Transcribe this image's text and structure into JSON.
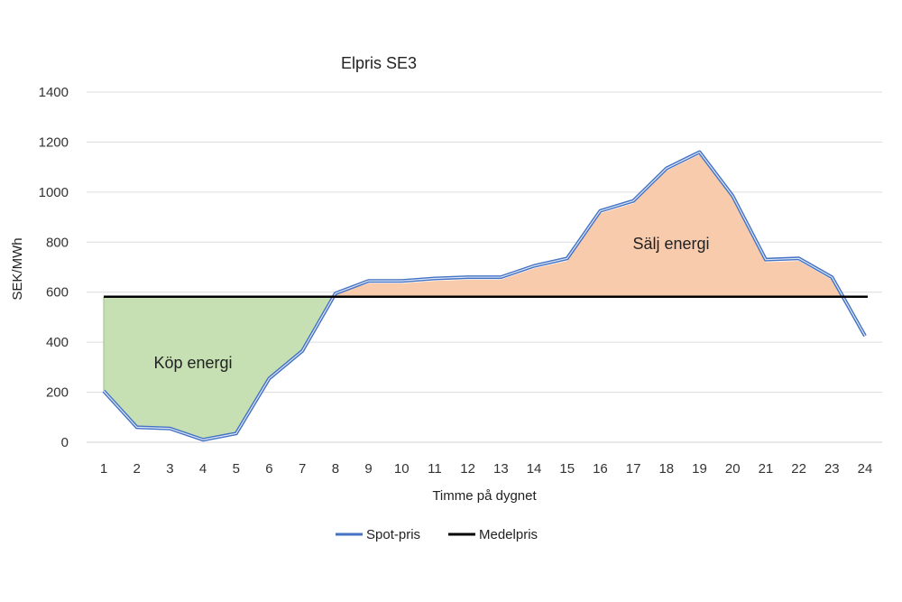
{
  "chart_data": {
    "type": "line",
    "title": "Elpris SE3",
    "xlabel": "Timme på dygnet",
    "ylabel": "SEK/MWh",
    "ylim": [
      0,
      1400
    ],
    "yticks": [
      0,
      200,
      400,
      600,
      800,
      1000,
      1200,
      1400
    ],
    "categories": [
      "1",
      "2",
      "3",
      "4",
      "5",
      "6",
      "7",
      "8",
      "9",
      "10",
      "11",
      "12",
      "13",
      "14",
      "15",
      "16",
      "17",
      "18",
      "19",
      "20",
      "21",
      "22",
      "23",
      "24"
    ],
    "grid": "horizontal",
    "legend_position": "bottom",
    "series": [
      {
        "name": "Spot-pris",
        "color": "#4472C4",
        "values": [
          205,
          60,
          55,
          10,
          35,
          255,
          365,
          595,
          645,
          645,
          655,
          660,
          660,
          705,
          735,
          925,
          965,
          1095,
          1160,
          985,
          730,
          735,
          660,
          425
        ]
      },
      {
        "name": "Medelpris",
        "color": "#000000",
        "values": [
          582,
          582,
          582,
          582,
          582,
          582,
          582,
          582,
          582,
          582,
          582,
          582,
          582,
          582,
          582,
          582,
          582,
          582,
          582,
          582,
          582,
          582,
          582,
          582
        ]
      }
    ],
    "annotations": [
      {
        "text": "Köp energi",
        "fill": "#C6E0B4"
      },
      {
        "text": "Sälj energi",
        "fill": "#F8CBAD"
      }
    ]
  }
}
